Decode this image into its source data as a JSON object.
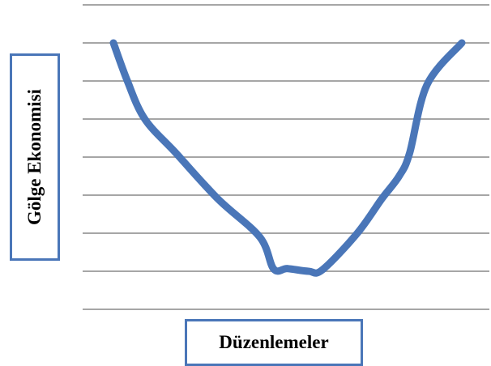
{
  "chart_data": {
    "type": "line",
    "title": "",
    "xlabel": "Düzenlemeler",
    "ylabel": "Gölge Ekonomisi",
    "x": [
      0,
      0.04,
      0.09,
      0.18,
      0.3,
      0.42,
      0.46,
      0.5,
      0.56,
      0.6,
      0.7,
      0.77,
      0.82,
      0.85,
      0.9,
      1.0
    ],
    "series": [
      {
        "values": [
          6.0,
          5.0,
          4.0,
          3.1,
          1.9,
          0.9,
          0.06,
          0.07,
          0.0,
          0.04,
          1.0,
          1.9,
          2.5,
          3.1,
          4.9,
          6.0
        ]
      }
    ],
    "ylim": [
      -1,
      7
    ],
    "xlim": [
      0,
      1
    ],
    "grid": true,
    "line_color": "#4a76b8",
    "grid_color": "#a6a6a6",
    "label_box_color": "#4a76b8"
  }
}
